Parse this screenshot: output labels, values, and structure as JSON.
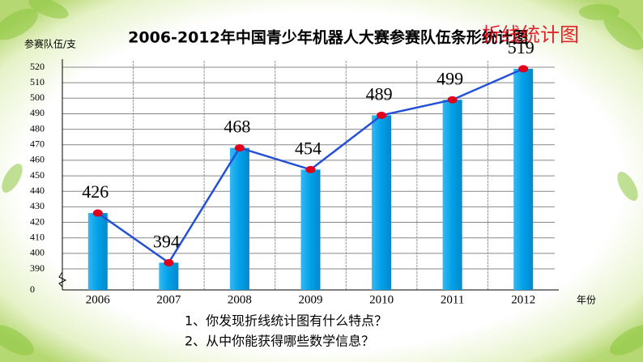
{
  "chart_data": {
    "type": "combo",
    "title": "2006-2012年中国青少年机器人大赛参赛队伍条形统计图",
    "annotation": "折线统计图",
    "y_label": "参赛队伍/支",
    "x_label": "年份",
    "categories": [
      "2006",
      "2007",
      "2008",
      "2009",
      "2010",
      "2011",
      "2012"
    ],
    "values": [
      426,
      394,
      468,
      454,
      489,
      499,
      519
    ],
    "bar_color": "#0aa4ec",
    "line_color": "#2450d8",
    "point_color": "#e0001b",
    "ylim": [
      0,
      520
    ],
    "yticks": [
      0,
      390,
      400,
      410,
      420,
      430,
      440,
      450,
      460,
      470,
      480,
      490,
      500,
      510,
      520
    ],
    "grid": true
  },
  "questions": [
    "1、你发现折线统计图有什么特点？",
    "2、从中你能获得哪些数学信息？"
  ]
}
